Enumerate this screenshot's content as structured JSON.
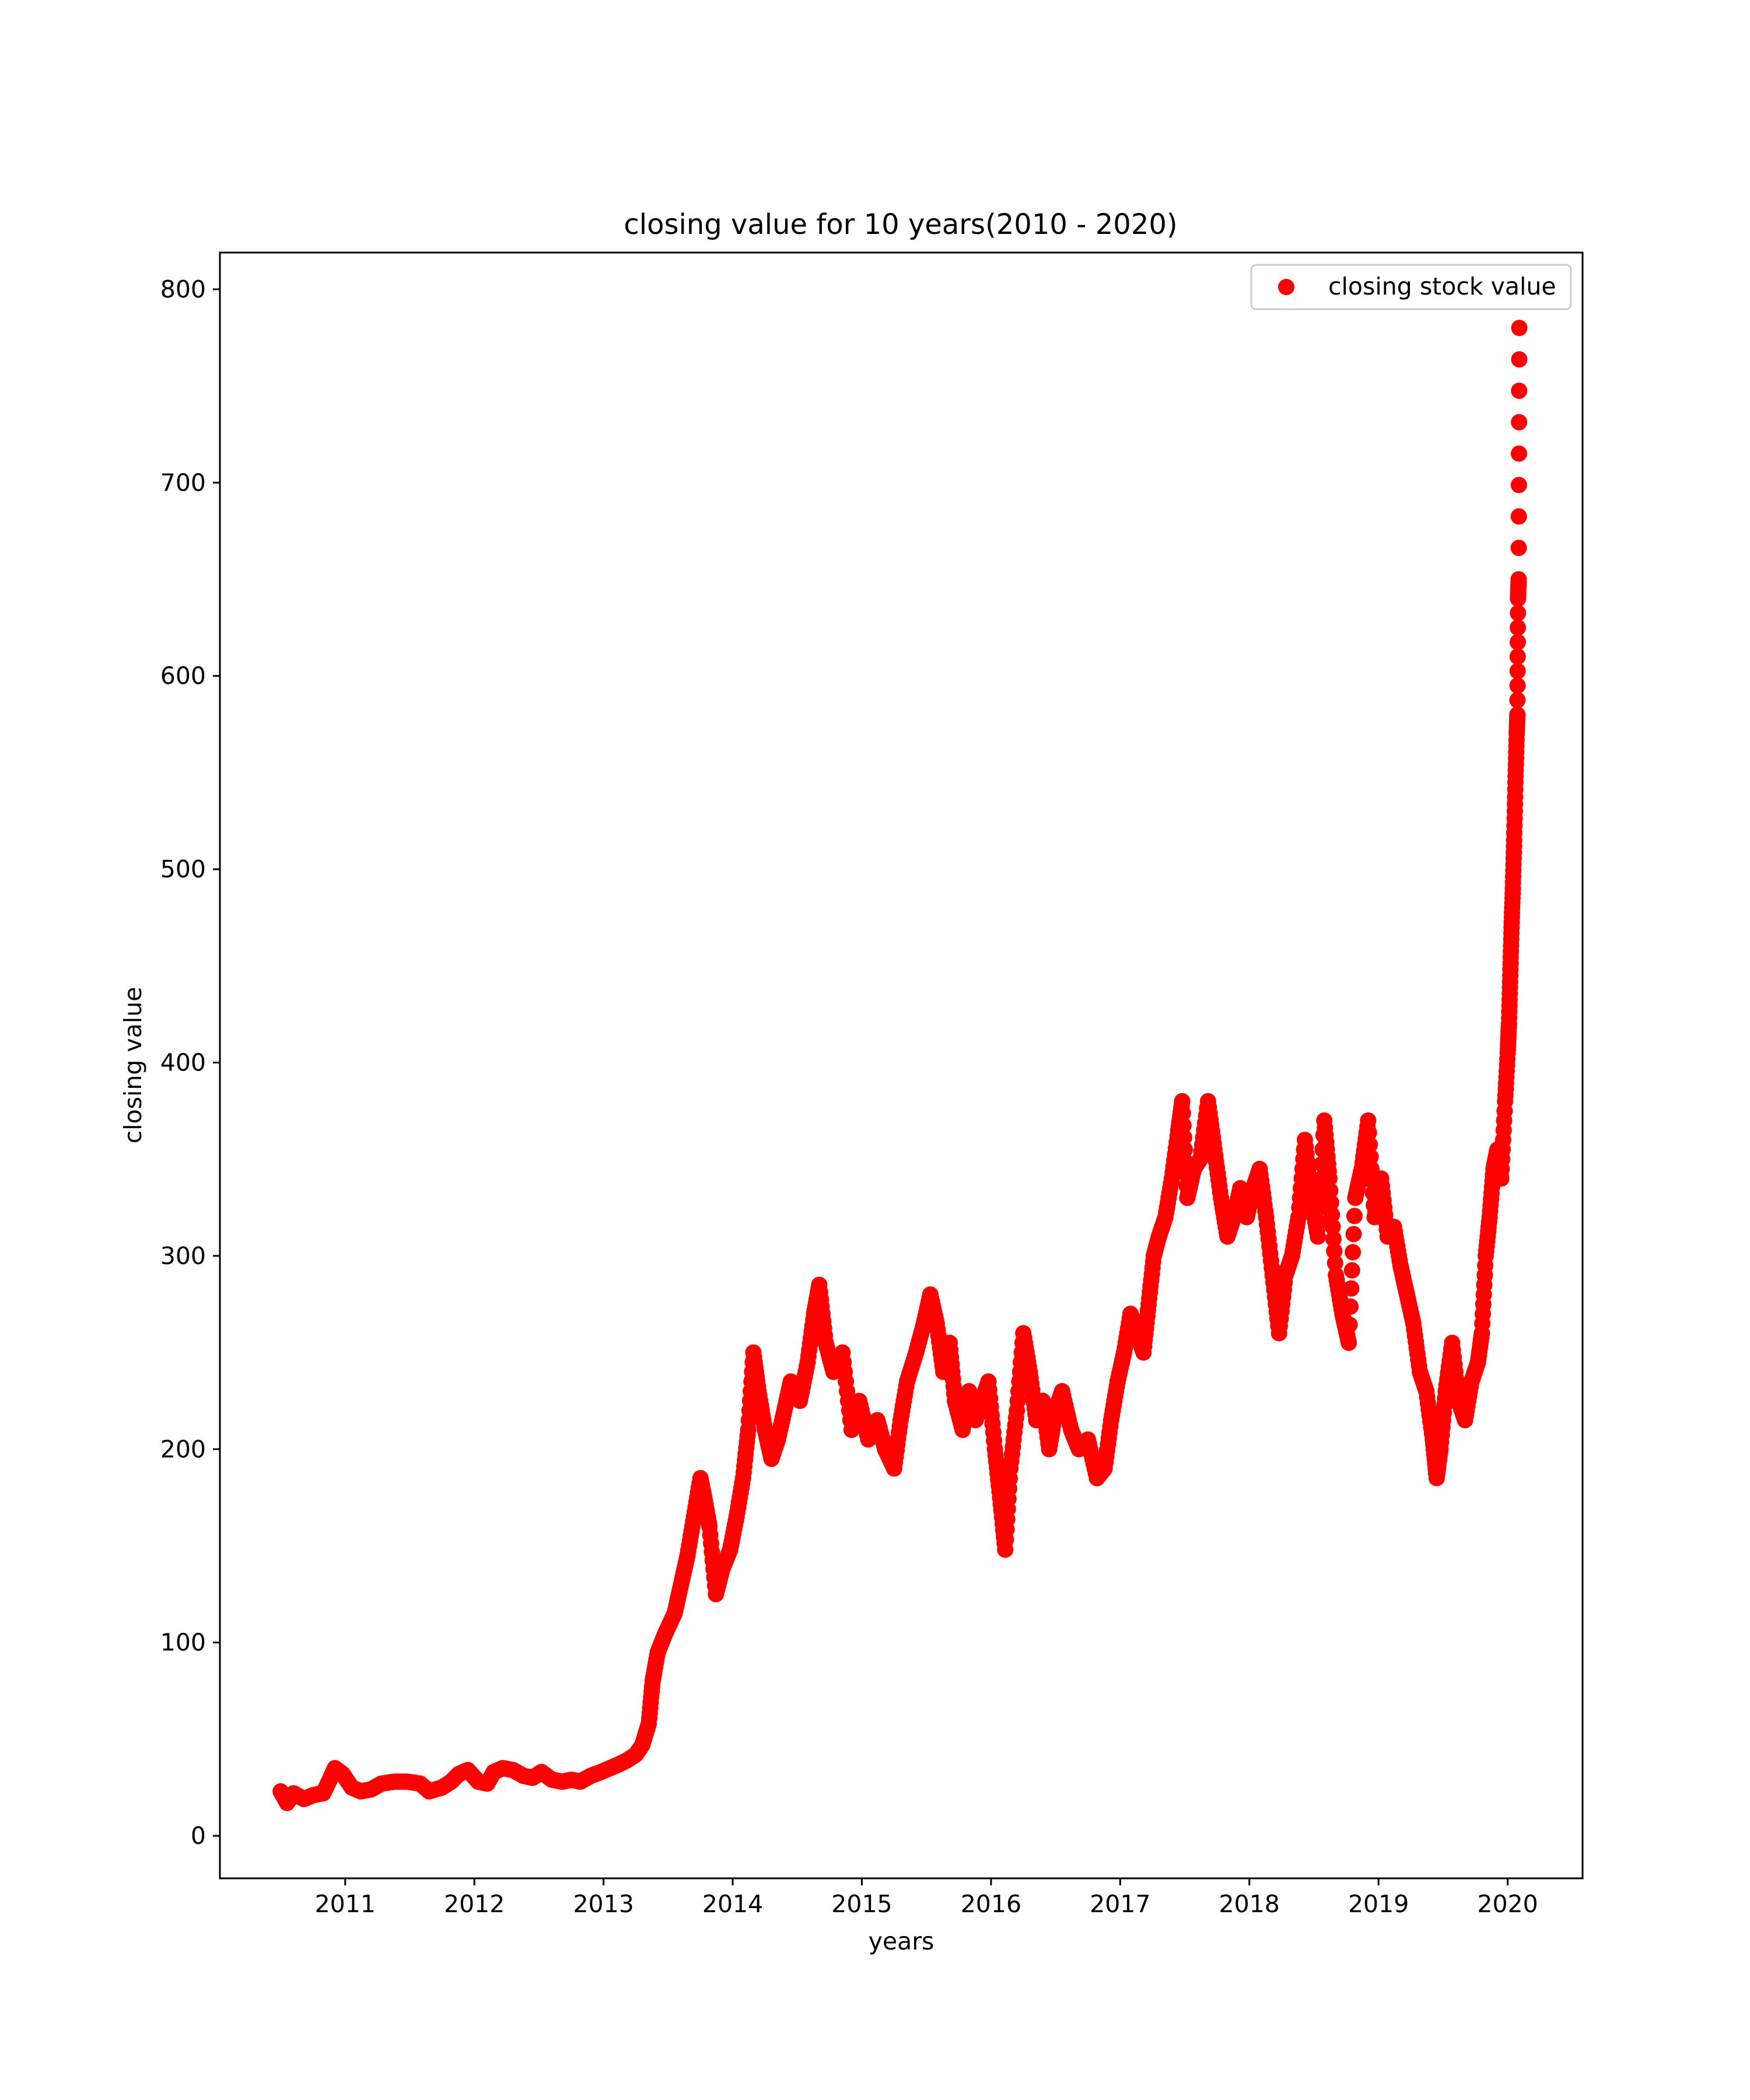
{
  "chart_data": {
    "type": "scatter",
    "title": "closing value for 10 years(2010 - 2020)",
    "xlabel": "years",
    "ylabel": "closing value",
    "legend": {
      "entry": "closing stock value",
      "placement": "top-right"
    },
    "marker_color": "#ff0000",
    "grid": false,
    "xlim": [
      2010.03,
      2020.58
    ],
    "ylim": [
      -22,
      819
    ],
    "xticks": [
      "2011",
      "2012",
      "2013",
      "2014",
      "2015",
      "2016",
      "2017",
      "2018",
      "2019",
      "2020"
    ],
    "yticks": [
      "0",
      "100",
      "200",
      "300",
      "400",
      "500",
      "600",
      "700",
      "800"
    ],
    "series": [
      {
        "name": "closing stock value",
        "points": [
          [
            2010.5,
            23
          ],
          [
            2010.55,
            17
          ],
          [
            2010.6,
            22
          ],
          [
            2010.68,
            19
          ],
          [
            2010.75,
            21
          ],
          [
            2010.83,
            22
          ],
          [
            2010.88,
            29
          ],
          [
            2010.92,
            35
          ],
          [
            2010.98,
            32
          ],
          [
            2011.05,
            25
          ],
          [
            2011.12,
            23
          ],
          [
            2011.2,
            24
          ],
          [
            2011.28,
            27
          ],
          [
            2011.38,
            28
          ],
          [
            2011.48,
            28
          ],
          [
            2011.58,
            27
          ],
          [
            2011.65,
            23
          ],
          [
            2011.75,
            25
          ],
          [
            2011.82,
            28
          ],
          [
            2011.88,
            32
          ],
          [
            2011.95,
            34
          ],
          [
            2012.03,
            28
          ],
          [
            2012.1,
            27
          ],
          [
            2012.15,
            33
          ],
          [
            2012.22,
            35
          ],
          [
            2012.3,
            34
          ],
          [
            2012.38,
            31
          ],
          [
            2012.45,
            30
          ],
          [
            2012.52,
            33
          ],
          [
            2012.6,
            29
          ],
          [
            2012.68,
            28
          ],
          [
            2012.75,
            29
          ],
          [
            2012.82,
            28
          ],
          [
            2012.9,
            31
          ],
          [
            2012.98,
            33
          ],
          [
            2013.05,
            35
          ],
          [
            2013.12,
            37
          ],
          [
            2013.18,
            39
          ],
          [
            2013.25,
            42
          ],
          [
            2013.3,
            47
          ],
          [
            2013.35,
            58
          ],
          [
            2013.38,
            80
          ],
          [
            2013.42,
            95
          ],
          [
            2013.48,
            105
          ],
          [
            2013.55,
            115
          ],
          [
            2013.6,
            130
          ],
          [
            2013.65,
            145
          ],
          [
            2013.7,
            165
          ],
          [
            2013.75,
            185
          ],
          [
            2013.78,
            175
          ],
          [
            2013.82,
            160
          ],
          [
            2013.87,
            125
          ],
          [
            2013.92,
            138
          ],
          [
            2013.98,
            148
          ],
          [
            2014.03,
            165
          ],
          [
            2014.08,
            185
          ],
          [
            2014.12,
            210
          ],
          [
            2014.16,
            250
          ],
          [
            2014.2,
            230
          ],
          [
            2014.25,
            210
          ],
          [
            2014.3,
            195
          ],
          [
            2014.35,
            205
          ],
          [
            2014.4,
            220
          ],
          [
            2014.45,
            235
          ],
          [
            2014.52,
            225
          ],
          [
            2014.58,
            245
          ],
          [
            2014.63,
            270
          ],
          [
            2014.67,
            285
          ],
          [
            2014.72,
            255
          ],
          [
            2014.78,
            240
          ],
          [
            2014.85,
            250
          ],
          [
            2014.92,
            210
          ],
          [
            2014.98,
            225
          ],
          [
            2015.05,
            205
          ],
          [
            2015.12,
            215
          ],
          [
            2015.18,
            200
          ],
          [
            2015.25,
            190
          ],
          [
            2015.3,
            215
          ],
          [
            2015.35,
            235
          ],
          [
            2015.42,
            250
          ],
          [
            2015.48,
            265
          ],
          [
            2015.53,
            280
          ],
          [
            2015.58,
            265
          ],
          [
            2015.63,
            240
          ],
          [
            2015.68,
            255
          ],
          [
            2015.72,
            225
          ],
          [
            2015.78,
            210
          ],
          [
            2015.83,
            230
          ],
          [
            2015.88,
            215
          ],
          [
            2015.93,
            225
          ],
          [
            2015.98,
            235
          ],
          [
            2016.03,
            200
          ],
          [
            2016.07,
            175
          ],
          [
            2016.11,
            148
          ],
          [
            2016.15,
            190
          ],
          [
            2016.2,
            220
          ],
          [
            2016.25,
            260
          ],
          [
            2016.3,
            240
          ],
          [
            2016.35,
            215
          ],
          [
            2016.4,
            225
          ],
          [
            2016.45,
            200
          ],
          [
            2016.5,
            220
          ],
          [
            2016.55,
            230
          ],
          [
            2016.62,
            210
          ],
          [
            2016.68,
            200
          ],
          [
            2016.75,
            205
          ],
          [
            2016.82,
            185
          ],
          [
            2016.88,
            190
          ],
          [
            2016.93,
            215
          ],
          [
            2016.98,
            235
          ],
          [
            2017.03,
            250
          ],
          [
            2017.08,
            270
          ],
          [
            2017.13,
            260
          ],
          [
            2017.18,
            250
          ],
          [
            2017.22,
            275
          ],
          [
            2017.26,
            300
          ],
          [
            2017.3,
            310
          ],
          [
            2017.35,
            320
          ],
          [
            2017.4,
            340
          ],
          [
            2017.45,
            365
          ],
          [
            2017.48,
            380
          ],
          [
            2017.52,
            330
          ],
          [
            2017.57,
            345
          ],
          [
            2017.62,
            350
          ],
          [
            2017.68,
            380
          ],
          [
            2017.73,
            355
          ],
          [
            2017.78,
            330
          ],
          [
            2017.83,
            310
          ],
          [
            2017.88,
            320
          ],
          [
            2017.93,
            335
          ],
          [
            2017.98,
            320
          ],
          [
            2018.03,
            335
          ],
          [
            2018.08,
            345
          ],
          [
            2018.13,
            320
          ],
          [
            2018.18,
            290
          ],
          [
            2018.23,
            260
          ],
          [
            2018.28,
            290
          ],
          [
            2018.33,
            300
          ],
          [
            2018.38,
            320
          ],
          [
            2018.43,
            360
          ],
          [
            2018.48,
            330
          ],
          [
            2018.53,
            310
          ],
          [
            2018.58,
            370
          ],
          [
            2018.62,
            340
          ],
          [
            2018.67,
            290
          ],
          [
            2018.72,
            270
          ],
          [
            2018.77,
            255
          ],
          [
            2018.82,
            330
          ],
          [
            2018.87,
            345
          ],
          [
            2018.92,
            370
          ],
          [
            2018.97,
            320
          ],
          [
            2019.02,
            340
          ],
          [
            2019.07,
            310
          ],
          [
            2019.12,
            315
          ],
          [
            2019.17,
            295
          ],
          [
            2019.22,
            280
          ],
          [
            2019.27,
            265
          ],
          [
            2019.32,
            240
          ],
          [
            2019.37,
            230
          ],
          [
            2019.42,
            205
          ],
          [
            2019.45,
            185
          ],
          [
            2019.48,
            200
          ],
          [
            2019.52,
            230
          ],
          [
            2019.57,
            255
          ],
          [
            2019.62,
            225
          ],
          [
            2019.67,
            215
          ],
          [
            2019.72,
            235
          ],
          [
            2019.77,
            245
          ],
          [
            2019.8,
            260
          ],
          [
            2019.83,
            300
          ],
          [
            2019.86,
            320
          ],
          [
            2019.89,
            345
          ],
          [
            2019.92,
            355
          ],
          [
            2019.95,
            340
          ],
          [
            2019.98,
            380
          ],
          [
            2020.0,
            405
          ],
          [
            2020.01,
            420
          ],
          [
            2020.02,
            445
          ],
          [
            2020.03,
            470
          ],
          [
            2020.04,
            490
          ],
          [
            2020.05,
            515
          ],
          [
            2020.06,
            545
          ],
          [
            2020.07,
            570
          ],
          [
            2020.075,
            580
          ],
          [
            2020.08,
            640
          ],
          [
            2020.085,
            650
          ],
          [
            2020.09,
            780
          ]
        ]
      }
    ]
  }
}
